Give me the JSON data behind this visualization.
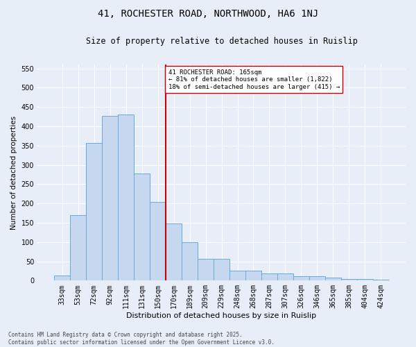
{
  "title": "41, ROCHESTER ROAD, NORTHWOOD, HA6 1NJ",
  "subtitle": "Size of property relative to detached houses in Ruislip",
  "xlabel": "Distribution of detached houses by size in Ruislip",
  "ylabel": "Number of detached properties",
  "footer_line1": "Contains HM Land Registry data © Crown copyright and database right 2025.",
  "footer_line2": "Contains public sector information licensed under the Open Government Licence v3.0.",
  "categories": [
    "33sqm",
    "53sqm",
    "72sqm",
    "92sqm",
    "111sqm",
    "131sqm",
    "150sqm",
    "170sqm",
    "189sqm",
    "209sqm",
    "229sqm",
    "248sqm",
    "268sqm",
    "287sqm",
    "307sqm",
    "326sqm",
    "346sqm",
    "365sqm",
    "385sqm",
    "404sqm",
    "424sqm"
  ],
  "values": [
    13,
    170,
    357,
    427,
    430,
    277,
    203,
    149,
    100,
    57,
    57,
    26,
    26,
    19,
    19,
    11,
    11,
    7,
    5,
    5,
    2
  ],
  "bar_color": "#c5d8f0",
  "bar_edge_color": "#6aaad4",
  "vline_x_index": 7,
  "annotation_text_line1": "41 ROCHESTER ROAD: 165sqm",
  "annotation_text_line2": "← 81% of detached houses are smaller (1,822)",
  "annotation_text_line3": "18% of semi-detached houses are larger (415) →",
  "annotation_box_facecolor": "#ffffff",
  "annotation_box_edgecolor": "#cc0000",
  "vline_color": "#cc0000",
  "background_color": "#e8eef8",
  "grid_color": "#ffffff",
  "ylim": [
    0,
    560
  ],
  "yticks": [
    0,
    50,
    100,
    150,
    200,
    250,
    300,
    350,
    400,
    450,
    500,
    550
  ],
  "title_fontsize": 10,
  "subtitle_fontsize": 8.5,
  "ylabel_fontsize": 7.5,
  "xlabel_fontsize": 8,
  "tick_fontsize": 7,
  "footer_fontsize": 5.5
}
